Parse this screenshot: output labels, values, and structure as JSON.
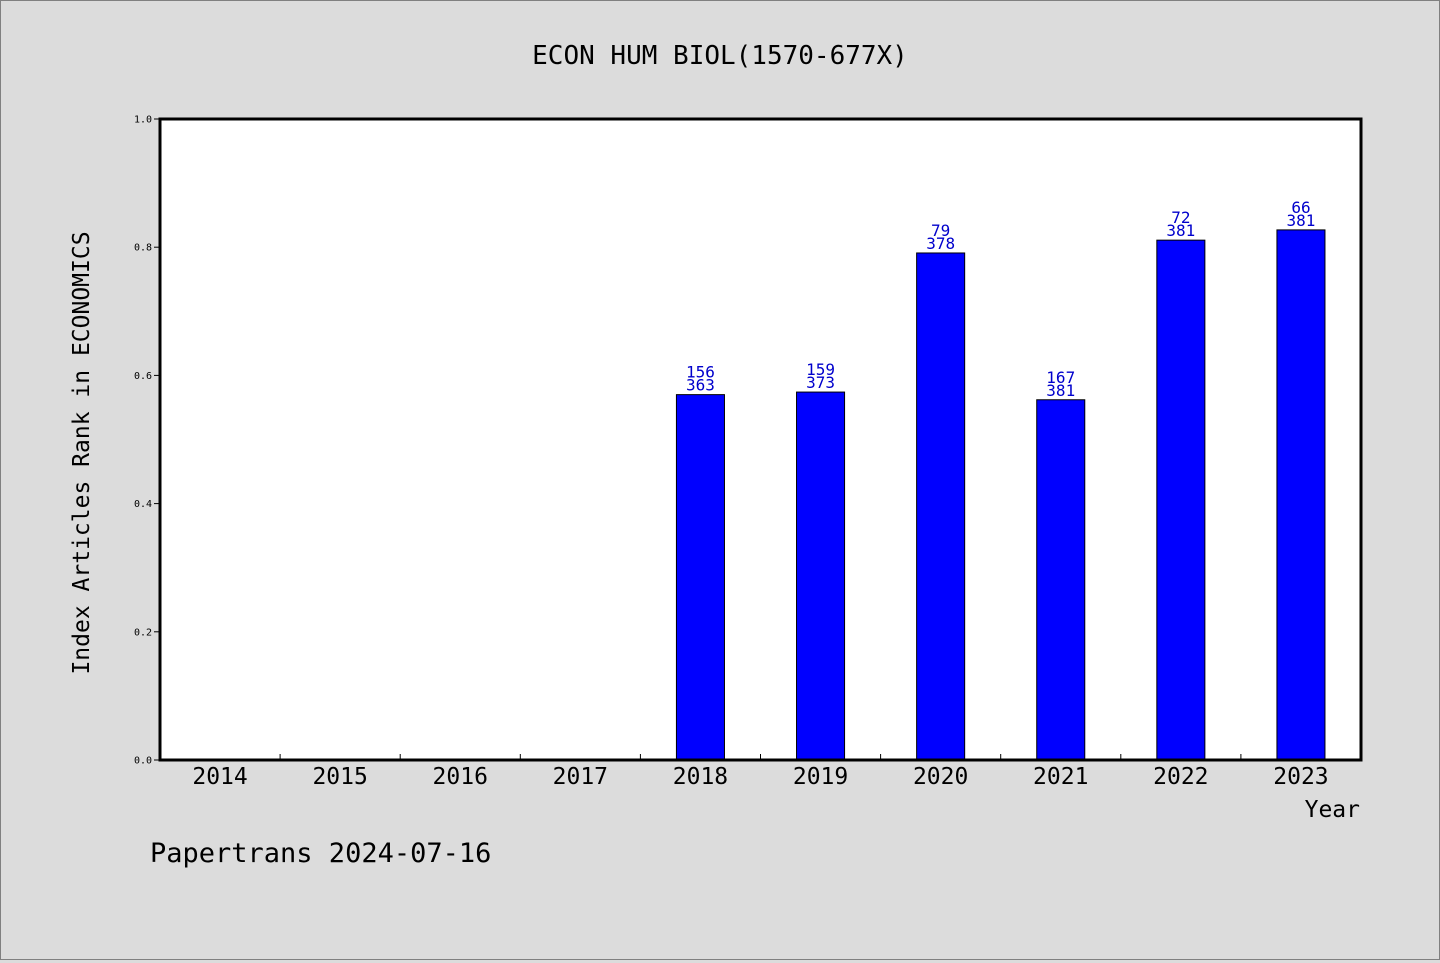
{
  "chart_data": {
    "type": "bar",
    "title": "ECON HUM BIOL(1570-677X)",
    "xlabel": "Year",
    "ylabel": "Index Articles Rank in ECONOMICS",
    "categories": [
      "2014",
      "2015",
      "2016",
      "2017",
      "2018",
      "2019",
      "2020",
      "2021",
      "2022",
      "2023"
    ],
    "values": [
      null,
      null,
      null,
      null,
      0.57,
      0.574,
      0.791,
      0.562,
      0.811,
      0.827
    ],
    "bar_labels": [
      null,
      null,
      null,
      null,
      [
        "156",
        "363"
      ],
      [
        "159",
        "373"
      ],
      [
        "79",
        "378"
      ],
      [
        "167",
        "381"
      ],
      [
        "72",
        "381"
      ],
      [
        "66",
        "381"
      ]
    ],
    "ylim": [
      0,
      1.0
    ],
    "yticks": [
      "0.0",
      "0.2",
      "0.4",
      "0.6",
      "0.8",
      "1.0"
    ],
    "grid": false,
    "bar_color": "#0000ff",
    "label_color": "#0000cc"
  },
  "footer": {
    "credit": "Papertrans 2024-07-16"
  }
}
